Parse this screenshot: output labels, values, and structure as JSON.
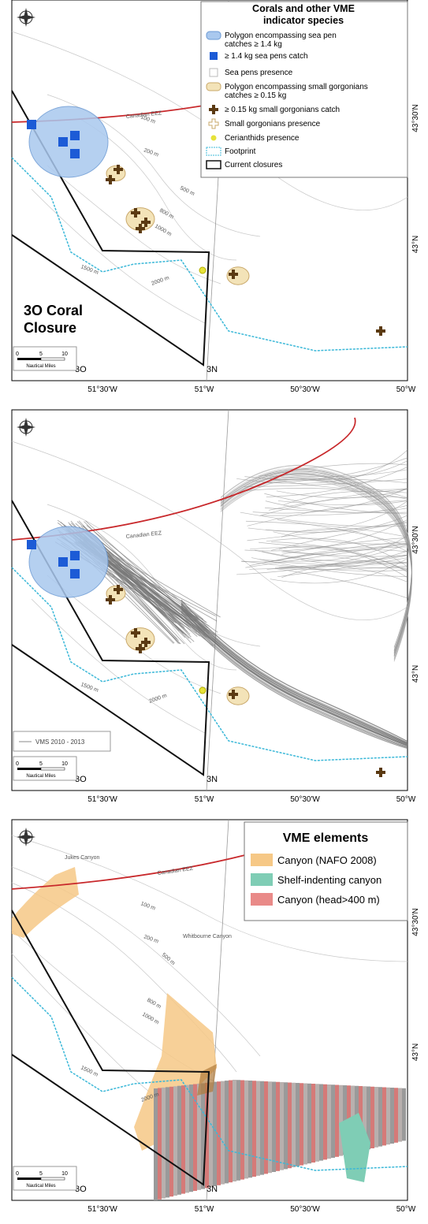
{
  "panels": [
    {
      "legend": {
        "title": [
          "Corals and other VME",
          "indicator species"
        ],
        "items": [
          [
            "Polygon encompassing sea pen",
            "catches ≥ 1.4 kg"
          ],
          [
            "≥ 1.4 kg sea pens catch"
          ],
          [
            "Sea pens presence"
          ],
          [
            "Polygon encompassing small gorgonians",
            "catches ≥ 0.15 kg"
          ],
          [
            "≥ 0.15 kg small gorgonians catch"
          ],
          [
            "Small gorgonians presence"
          ],
          [
            "Cerianthids presence"
          ],
          [
            "Footprint"
          ],
          [
            "Current closures"
          ]
        ]
      },
      "map_labels": {
        "eez": "Canadian EEZ",
        "d100": "100 m",
        "d200": "200 m",
        "d500": "500 m",
        "d800": "800 m",
        "d1000": "1000 m",
        "d1500": "1500 m",
        "d2000": "2000 m",
        "div_3o": "3O",
        "div_3n": "3N"
      },
      "closure_label": [
        "3O Coral",
        "Closure"
      ],
      "scale": {
        "ticks": [
          0,
          5,
          10
        ],
        "unit": "Nautical Miles"
      },
      "lon_ticks": [
        "51°30'W",
        "51°W",
        "50°30'W",
        "50°W"
      ],
      "lat_ticks": [
        "43°30'N",
        "43°N"
      ]
    },
    {
      "map_labels": {
        "eez": "Canadian EEZ",
        "d1500": "1500 m",
        "d2000": "2000 m",
        "div_3o": "3O",
        "div_3n": "3N"
      },
      "vms_legend": "VMS 2010 - 2013",
      "scale": {
        "ticks": [
          0,
          5,
          10
        ],
        "unit": "Nautical Miles"
      },
      "lon_ticks": [
        "51°30'W",
        "51°W",
        "50°30'W",
        "50°W"
      ],
      "lat_ticks": [
        "43°30'N",
        "43°N"
      ]
    },
    {
      "legend": {
        "title": [
          "VME elements"
        ],
        "items": [
          {
            "label": "Canyon (NAFO 2008)",
            "color": "#f6c886"
          },
          {
            "label": "Shelf-indenting canyon",
            "color": "#7fcdb5"
          },
          {
            "label": "Canyon (head>400 m)",
            "color": "#e98a88"
          }
        ]
      },
      "map_labels": {
        "eez": "Canadian EEZ",
        "jukes": "Jukes Canyon",
        "whitbourne": "Whitbourne Canyon",
        "d100": "100 m",
        "d200": "200 m",
        "d500": "500 m",
        "d800": "800 m",
        "d1000": "1000 m",
        "d1500": "1500 m",
        "d2000": "2000 m",
        "div_3o": "3O",
        "div_3n": "3N"
      },
      "scale": {
        "ticks": [
          0,
          5,
          10
        ],
        "unit": "Nautical Miles"
      },
      "lon_ticks": [
        "51°30'W",
        "51°W",
        "50°30'W",
        "50°W"
      ],
      "lat_ticks": [
        "43°30'N",
        "43°N"
      ]
    }
  ]
}
